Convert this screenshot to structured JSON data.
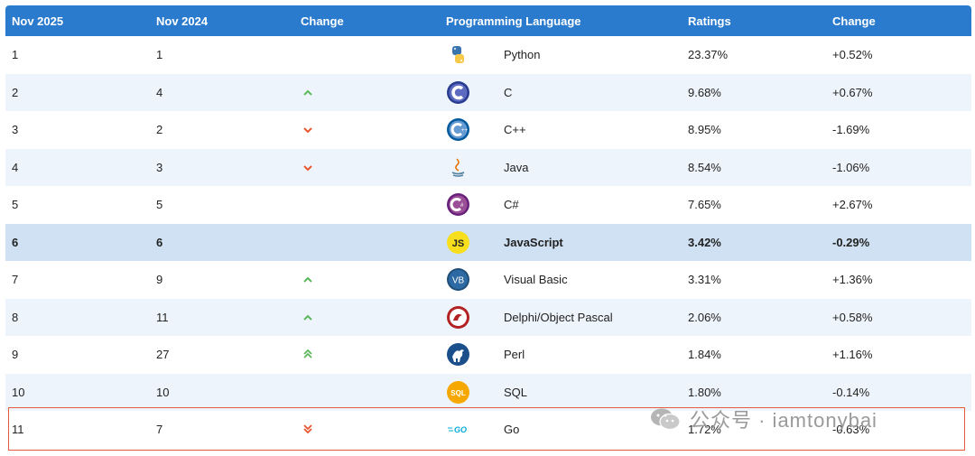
{
  "header": {
    "col_nov2025": "Nov 2025",
    "col_nov2024": "Nov 2024",
    "col_change": "Change",
    "col_language": "Programming Language",
    "col_ratings": "Ratings",
    "col_change2": "Change"
  },
  "rows": [
    {
      "rank2025": "1",
      "rank2024": "1",
      "trend": "none",
      "language": "Python",
      "logo": "python-logo-icon",
      "rating": "23.37%",
      "change": "+0.52%"
    },
    {
      "rank2025": "2",
      "rank2024": "4",
      "trend": "up",
      "language": "C",
      "logo": "c-logo-icon",
      "rating": "9.68%",
      "change": "+0.67%"
    },
    {
      "rank2025": "3",
      "rank2024": "2",
      "trend": "down",
      "language": "C++",
      "logo": "cpp-logo-icon",
      "rating": "8.95%",
      "change": "-1.69%"
    },
    {
      "rank2025": "4",
      "rank2024": "3",
      "trend": "down",
      "language": "Java",
      "logo": "java-logo-icon",
      "rating": "8.54%",
      "change": "-1.06%"
    },
    {
      "rank2025": "5",
      "rank2024": "5",
      "trend": "none",
      "language": "C#",
      "logo": "csharp-logo-icon",
      "rating": "7.65%",
      "change": "+2.67%"
    },
    {
      "rank2025": "6",
      "rank2024": "6",
      "trend": "none",
      "language": "JavaScript",
      "logo": "javascript-logo-icon",
      "rating": "3.42%",
      "change": "-0.29%"
    },
    {
      "rank2025": "7",
      "rank2024": "9",
      "trend": "up",
      "language": "Visual Basic",
      "logo": "vb-logo-icon",
      "rating": "3.31%",
      "change": "+1.36%"
    },
    {
      "rank2025": "8",
      "rank2024": "11",
      "trend": "up",
      "language": "Delphi/Object Pascal",
      "logo": "delphi-logo-icon",
      "rating": "2.06%",
      "change": "+0.58%"
    },
    {
      "rank2025": "9",
      "rank2024": "27",
      "trend": "double-up",
      "language": "Perl",
      "logo": "perl-logo-icon",
      "rating": "1.84%",
      "change": "+1.16%"
    },
    {
      "rank2025": "10",
      "rank2024": "10",
      "trend": "none",
      "language": "SQL",
      "logo": "sql-logo-icon",
      "rating": "1.80%",
      "change": "-0.14%"
    },
    {
      "rank2025": "11",
      "rank2024": "7",
      "trend": "double-down",
      "language": "Go",
      "logo": "go-logo-icon",
      "rating": "1.72%",
      "change": "-0.63%"
    }
  ],
  "logo_text": {
    "js": "JS",
    "vb": "VB",
    "sql": "SQL",
    "go": "GO"
  },
  "watermark": {
    "text": "公众号 · iamtonybai"
  },
  "colors": {
    "header": "#2a7bcd",
    "highlight": "#cfe1f3",
    "up": "#5cb85c",
    "down": "#e8562f",
    "annotation": "#e65b3f"
  }
}
